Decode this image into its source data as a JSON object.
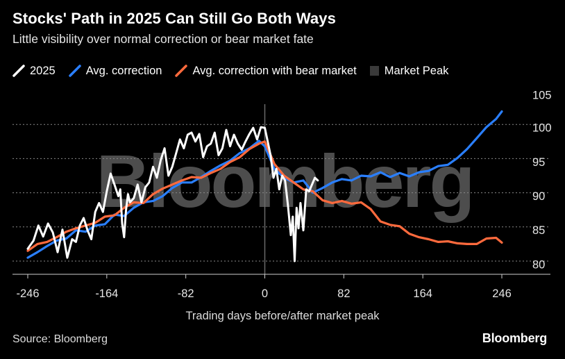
{
  "title": "Stocks' Path in 2025 Can Still Go Both Ways",
  "subtitle": "Little visibility over normal correction or bear market fate",
  "legend": [
    {
      "label": "2025",
      "color": "#ffffff",
      "icon": "line-icon"
    },
    {
      "label": "Avg. correction",
      "color": "#2a7fff",
      "icon": "line-icon"
    },
    {
      "label": "Avg. correction with bear market",
      "color": "#ff6a3d",
      "icon": "line-icon"
    },
    {
      "label": "Market Peak",
      "color": "#3a3a3a",
      "icon": "box-icon"
    }
  ],
  "source": "Source: Bloomberg",
  "brand": "Bloomberg",
  "watermark": "Bloomberg",
  "chart_data": {
    "type": "line",
    "title": "Stocks' Path in 2025 Can Still Go Both Ways",
    "xlabel": "Trading days before/after market peak",
    "ylabel": "",
    "xlim": [
      -255,
      255
    ],
    "ylim": [
      79,
      106
    ],
    "x_ticks": [
      -246,
      -164,
      -82,
      0,
      82,
      164,
      246
    ],
    "x_tick_labels": [
      "-246",
      "-164",
      "-82",
      "0",
      "82",
      "164",
      "246"
    ],
    "y_ticks": [
      80,
      85,
      90,
      95,
      100,
      105
    ],
    "y_tick_labels": [
      "80",
      "85",
      "90",
      "95",
      "100",
      "105"
    ],
    "grid": "horizontal dotted",
    "market_peak_x": 0,
    "series": [
      {
        "name": "2025",
        "color": "#ffffff",
        "x": [
          -246,
          -240,
          -235,
          -230,
          -225,
          -220,
          -215,
          -210,
          -205,
          -200,
          -196,
          -192,
          -188,
          -184,
          -180,
          -176,
          -172,
          -168,
          -164,
          -160,
          -156,
          -152,
          -150,
          -148,
          -146,
          -144,
          -142,
          -140,
          -136,
          -132,
          -128,
          -124,
          -120,
          -116,
          -112,
          -108,
          -104,
          -100,
          -96,
          -92,
          -88,
          -84,
          -80,
          -76,
          -72,
          -68,
          -64,
          -60,
          -56,
          -52,
          -48,
          -44,
          -40,
          -36,
          -32,
          -28,
          -24,
          -20,
          -16,
          -12,
          -8,
          -4,
          0,
          3,
          6,
          9,
          12,
          15,
          18,
          21,
          24,
          27,
          29,
          31,
          33,
          35,
          37,
          40,
          43,
          46,
          49,
          52,
          55
        ],
        "values": [
          81.8,
          83,
          85.2,
          83.6,
          85.5,
          84.2,
          81.3,
          84.6,
          80.5,
          83.2,
          82.8,
          85.2,
          86.3,
          84.5,
          83.2,
          87.2,
          88.5,
          87.2,
          90.2,
          92.8,
          91.2,
          89.5,
          90.5,
          85.5,
          83.5,
          87.5,
          89.8,
          88.6,
          89.2,
          91.2,
          88.6,
          90.8,
          91.5,
          93.8,
          92.2,
          94.8,
          96.5,
          92.5,
          93.8,
          95.8,
          97.8,
          96.5,
          98.5,
          98.8,
          97.5,
          98.6,
          95.2,
          96.8,
          97.2,
          98.8,
          95.5,
          96.5,
          99.2,
          96.8,
          98.5,
          97.2,
          96.3,
          97.5,
          98.6,
          99.5,
          97.8,
          99.6,
          99.5,
          97.5,
          95.5,
          92.2,
          93.5,
          90.5,
          92.5,
          91.8,
          88.2,
          83.8,
          86.5,
          80,
          87.8,
          84.8,
          88.5,
          84.5,
          90.5,
          90.2,
          91.2,
          92.2,
          91.8
        ]
      },
      {
        "name": "Avg. correction",
        "color": "#2a7fff",
        "x": [
          -246,
          -236,
          -226,
          -216,
          -206,
          -196,
          -186,
          -176,
          -166,
          -156,
          -146,
          -136,
          -126,
          -116,
          -106,
          -96,
          -86,
          -76,
          -66,
          -56,
          -46,
          -36,
          -26,
          -16,
          -6,
          0,
          10,
          20,
          30,
          40,
          50,
          60,
          70,
          80,
          90,
          100,
          110,
          120,
          130,
          140,
          150,
          160,
          170,
          180,
          190,
          200,
          210,
          220,
          230,
          240,
          246
        ],
        "values": [
          80.5,
          81.3,
          82.2,
          83,
          83.3,
          84.5,
          84.3,
          85.2,
          85.4,
          86.8,
          86.6,
          87.8,
          88.6,
          88.8,
          89.5,
          90.7,
          91.5,
          91.5,
          92.3,
          93.2,
          94,
          94.7,
          95.8,
          96.5,
          97.6,
          96.8,
          93.5,
          92.2,
          91.5,
          91.8,
          90,
          90.7,
          91.5,
          92,
          91.8,
          92.5,
          92.4,
          93,
          92.3,
          92.9,
          92.4,
          93,
          93.2,
          93.9,
          94.1,
          95.1,
          96.4,
          98,
          99.6,
          100.8,
          101.9
        ]
      },
      {
        "name": "Avg. correction with bear market",
        "color": "#ff6a3d",
        "x": [
          -246,
          -236,
          -226,
          -216,
          -206,
          -196,
          -186,
          -176,
          -166,
          -156,
          -146,
          -136,
          -126,
          -116,
          -106,
          -96,
          -86,
          -76,
          -66,
          -56,
          -46,
          -36,
          -26,
          -16,
          -6,
          0,
          10,
          20,
          30,
          40,
          50,
          60,
          70,
          80,
          90,
          100,
          110,
          120,
          130,
          140,
          150,
          160,
          170,
          180,
          190,
          200,
          210,
          220,
          230,
          240,
          246
        ],
        "values": [
          81.5,
          82.5,
          82.8,
          83.5,
          84.3,
          84.8,
          85.2,
          85.6,
          86.5,
          86.7,
          87.8,
          88.6,
          88.5,
          89.8,
          90.6,
          91.2,
          91.8,
          92.3,
          92.2,
          92.9,
          93.5,
          94.5,
          95.2,
          96.4,
          97.2,
          97.5,
          94.2,
          92.5,
          91.5,
          90.5,
          90.2,
          88.9,
          88.5,
          88.8,
          88.4,
          88.6,
          87.6,
          85.8,
          85.3,
          85.1,
          84,
          83.5,
          83.2,
          82.8,
          82.9,
          82.6,
          82.5,
          82.5,
          83.3,
          83.4,
          82.7
        ]
      }
    ]
  }
}
